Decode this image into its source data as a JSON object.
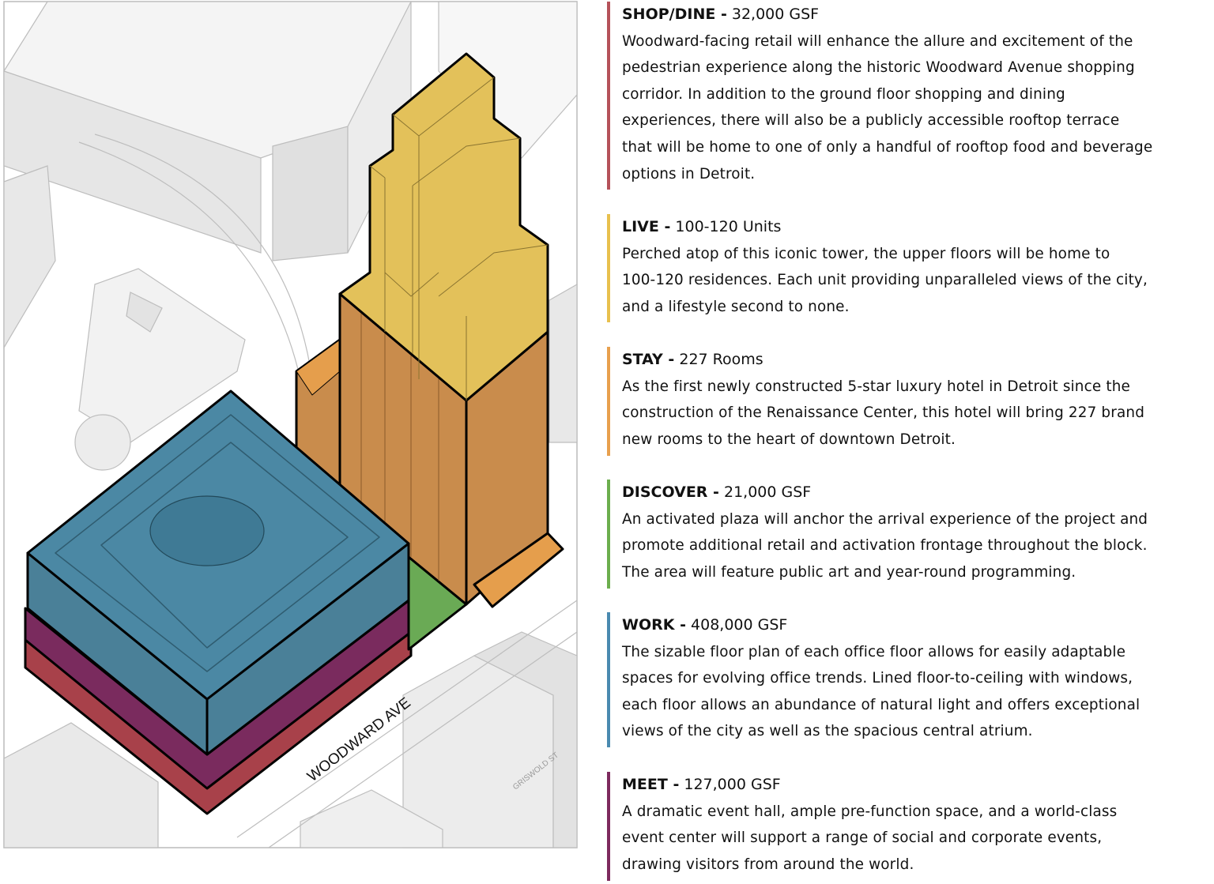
{
  "diagram": {
    "street_labels": [
      "WOODWARD AVE",
      "GRISWOLD ST"
    ],
    "colors": {
      "shop_dine": "#a8414a",
      "live": "#e6c35a",
      "stay": "#c98c4c",
      "discover": "#6aaa55",
      "work": "#4a86a0",
      "meet": "#7a2b5e"
    }
  },
  "sections": [
    {
      "title": "SHOP/DINE -",
      "value": "32,000 GSF",
      "color": "#b5525a",
      "lines": [
        "Woodward-facing retail will enhance the allure and excitement of the",
        "pedestrian experience along the historic Woodward Avenue shopping",
        "corridor. In addition to the ground floor shopping and dining",
        "experiences, there will also be a publicly accessible rooftop terrace",
        "that will be home to one of only a handful of rooftop food and beverage",
        "options in Detroit."
      ]
    },
    {
      "title": "LIVE -",
      "value": "100-120 Units",
      "color": "#e8c04e",
      "lines": [
        "Perched atop of this iconic tower, the upper floors will be home to",
        "100-120 residences. Each unit providing unparalleled views of the city,",
        "and a lifestyle second to none."
      ]
    },
    {
      "title": "STAY -",
      "value": "227 Rooms",
      "color": "#e8a04e",
      "lines": [
        "As the first newly constructed 5-star luxury hotel in Detroit since the",
        "construction of the Renaissance Center, this hotel will bring 227 brand",
        "new rooms to the heart of downtown Detroit."
      ]
    },
    {
      "title": "DISCOVER -",
      "value": "21,000 GSF",
      "color": "#6cae4e",
      "lines": [
        "An activated plaza will anchor the arrival experience of the project and",
        "promote additional retail and activation frontage throughout the block.",
        "The area will feature public art and year-round programming."
      ]
    },
    {
      "title": "WORK -",
      "value": "408,000 GSF",
      "color": "#4a8ab0",
      "lines": [
        "The sizable floor plan of each office floor allows for easily adaptable",
        "spaces for evolving office trends. Lined floor-to-ceiling with windows,",
        "each floor allows an abundance of natural light and offers exceptional",
        "views of the city as well as the spacious central atrium."
      ]
    },
    {
      "title": "MEET -",
      "value": "127,000 GSF",
      "color": "#7d2a5e",
      "lines": [
        "A dramatic event hall, ample pre-function space, and a world-class",
        "event center will support a range of social and corporate events,",
        "drawing visitors from around the world."
      ]
    }
  ]
}
